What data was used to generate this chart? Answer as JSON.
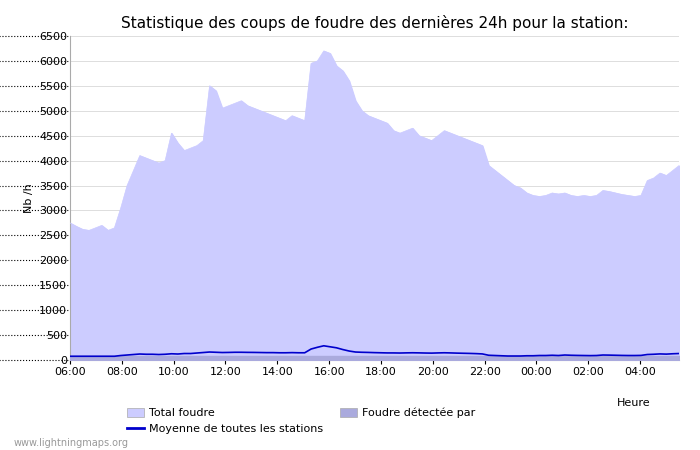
{
  "title": "Statistique des coups de foudre des dernières 24h pour la station:",
  "ylabel": "Nb /h",
  "xlabel": "Heure",
  "watermark": "www.lightningmaps.org",
  "ylim": [
    0,
    6500
  ],
  "yticks": [
    0,
    500,
    1000,
    1500,
    2000,
    2500,
    3000,
    3500,
    4000,
    4500,
    5000,
    5500,
    6000,
    6500
  ],
  "x_tick_labels": [
    "06:00",
    "08:00",
    "10:00",
    "12:00",
    "14:00",
    "16:00",
    "18:00",
    "20:00",
    "22:00",
    "00:00",
    "02:00",
    "04:00"
  ],
  "x_tick_positions": [
    0,
    2,
    4,
    6,
    8,
    10,
    12,
    14,
    16,
    18,
    20,
    22
  ],
  "xlim": [
    0,
    23.5
  ],
  "total_foudre_color": "#ccccff",
  "foudre_detectee_color": "#aaaadd",
  "moyenne_color": "#0000cc",
  "grid_color": "#dddddd",
  "background_color": "#ffffff",
  "total_foudre_y": [
    2750,
    2680,
    2620,
    2600,
    2650,
    2700,
    2600,
    2650,
    3050,
    3500,
    3800,
    4100,
    4050,
    4000,
    3950,
    4000,
    4550,
    4350,
    4200,
    4250,
    4300,
    4400,
    5500,
    5400,
    5050,
    5100,
    5150,
    5200,
    5100,
    5050,
    5000,
    4950,
    4900,
    4850,
    4800,
    4900,
    4850,
    4800,
    5950,
    6000,
    6200,
    6150,
    5900,
    5800,
    5600,
    5200,
    5000,
    4900,
    4850,
    4800,
    4750,
    4600,
    4550,
    4600,
    4650,
    4500,
    4450,
    4400,
    4500,
    4600,
    4550,
    4500,
    4450,
    4400,
    4350,
    4300,
    3900,
    3800,
    3700,
    3600,
    3500,
    3450,
    3350,
    3300,
    3280,
    3300,
    3350,
    3330,
    3350,
    3300,
    3280,
    3300,
    3280,
    3300,
    3400,
    3380,
    3350,
    3320,
    3300,
    3280,
    3300,
    3600,
    3650,
    3750,
    3700,
    3800,
    3900
  ],
  "foudre_detectee_y": [
    80,
    80,
    80,
    80,
    80,
    80,
    80,
    80,
    80,
    80,
    80,
    80,
    80,
    80,
    80,
    80,
    80,
    80,
    80,
    80,
    80,
    80,
    80,
    80,
    80,
    80,
    80,
    80,
    80,
    80,
    80,
    80,
    80,
    80,
    80,
    80,
    80,
    80,
    80,
    80,
    80,
    80,
    80,
    80,
    80,
    80,
    80,
    80,
    80,
    80,
    80,
    80,
    80,
    80,
    80,
    80,
    80,
    80,
    80,
    80,
    80,
    80,
    80,
    80,
    80,
    80,
    80,
    80,
    80,
    80,
    80,
    80,
    80,
    80,
    80,
    80,
    80,
    80,
    80,
    80,
    80,
    80,
    80,
    80,
    80,
    80,
    80,
    80,
    80,
    80,
    80,
    80,
    80,
    80,
    80,
    80,
    80
  ],
  "moyenne_y": [
    75,
    75,
    75,
    75,
    75,
    75,
    75,
    75,
    90,
    100,
    110,
    120,
    115,
    115,
    110,
    115,
    125,
    120,
    130,
    130,
    140,
    150,
    160,
    155,
    150,
    152,
    155,
    155,
    153,
    152,
    150,
    148,
    148,
    145,
    145,
    148,
    145,
    145,
    220,
    255,
    285,
    265,
    245,
    210,
    180,
    160,
    155,
    152,
    148,
    145,
    142,
    142,
    140,
    143,
    145,
    143,
    140,
    138,
    142,
    145,
    142,
    138,
    135,
    132,
    128,
    122,
    95,
    90,
    85,
    80,
    80,
    80,
    85,
    85,
    90,
    90,
    95,
    90,
    100,
    95,
    92,
    90,
    88,
    90,
    100,
    98,
    95,
    92,
    90,
    90,
    92,
    110,
    115,
    122,
    118,
    125,
    130
  ],
  "title_fontsize": 11,
  "tick_fontsize": 8,
  "label_fontsize": 8,
  "legend_fontsize": 8,
  "watermark_fontsize": 7
}
